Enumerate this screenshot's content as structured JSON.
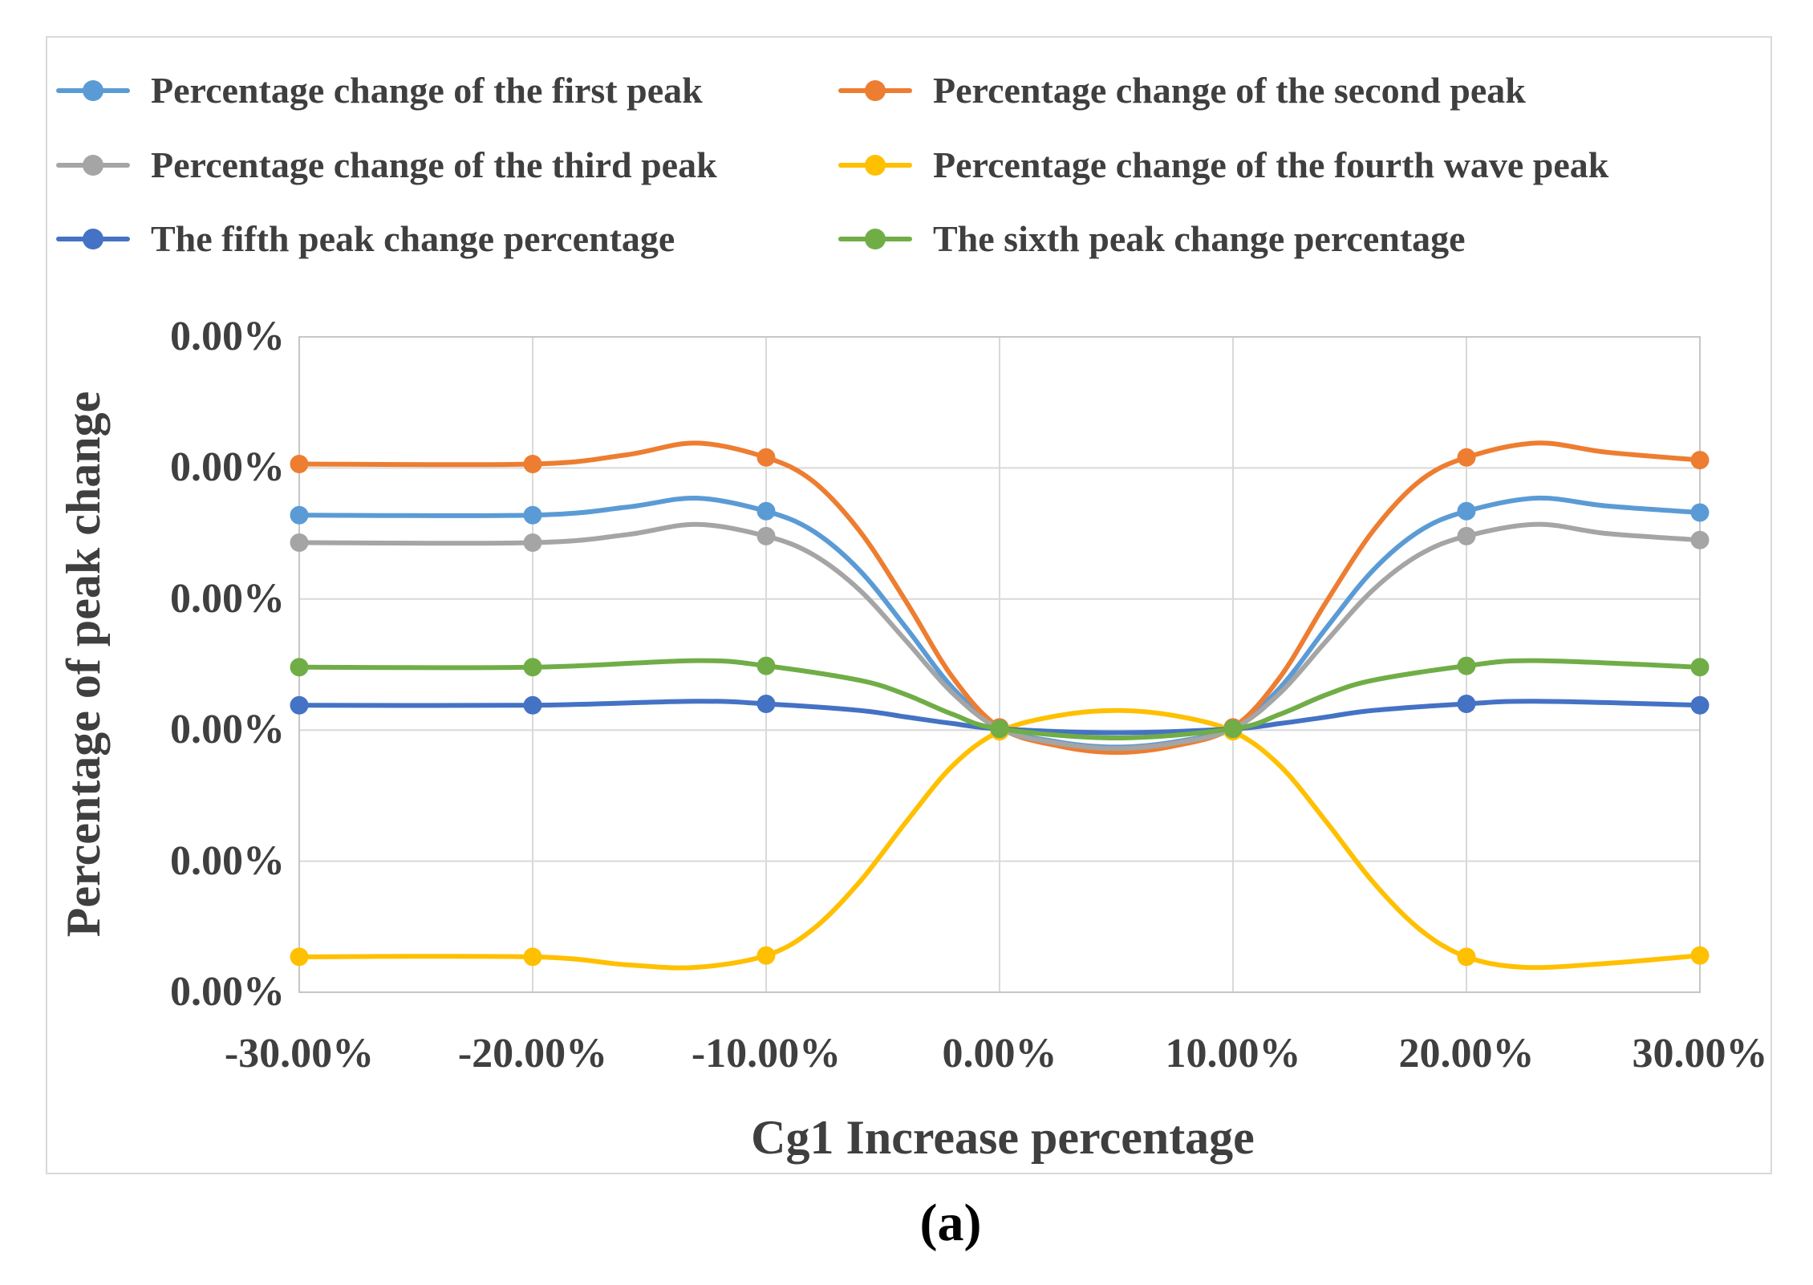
{
  "caption": "(a)",
  "palette": {
    "text_color": "#3F3F3F",
    "gridline_color": "#D9D9D9",
    "plot_border_color": "#C6C6C6",
    "chart_border_color": "#D9D9D9",
    "caption_color": "#000000",
    "background": "#FFFFFF"
  },
  "chart_data": {
    "type": "line",
    "title": "",
    "xlabel": "Cg1 Increase percentage",
    "ylabel": "Percentage of peak change",
    "legend_position": "top",
    "grid": true,
    "x_tick_labels": [
      "-30.00%",
      "-20.00%",
      "-10.00%",
      "0.00%",
      "10.00%",
      "20.00%",
      "30.00%"
    ],
    "x_tick_values": [
      -30,
      -20,
      -10,
      0,
      10,
      20,
      30
    ],
    "y_tick_labels": [
      "0.00%",
      "0.00%",
      "0.00%",
      "0.00%",
      "0.00%",
      "0.00%"
    ],
    "y_axis_note": "All six y-axis tick labels display 0.00% (values rounded to 2 decimals); series values below are relative heights in gridline units above the 4th gridline (the zero line where curves converge at 0.00% and 10.00%)",
    "xlim": [
      -30,
      30
    ],
    "ylim_grid_units": [
      -2,
      3
    ],
    "series": [
      {
        "name": "Percentage change of the first peak",
        "color": "#5B9BD5",
        "values_grid_units": [
          1.64,
          1.64,
          1.67,
          0.02,
          0.02,
          1.67,
          1.66
        ],
        "curve": [
          [
            -30,
            1.64
          ],
          [
            -20,
            1.64
          ],
          [
            -16,
            1.7
          ],
          [
            -13,
            1.77
          ],
          [
            -10,
            1.67
          ],
          [
            -8,
            1.52
          ],
          [
            -6,
            1.22
          ],
          [
            -4,
            0.78
          ],
          [
            -2,
            0.32
          ],
          [
            0,
            0.02
          ],
          [
            2.5,
            -0.09
          ],
          [
            5,
            -0.13
          ],
          [
            7.5,
            -0.09
          ],
          [
            10,
            0.02
          ],
          [
            12,
            0.32
          ],
          [
            14,
            0.78
          ],
          [
            16,
            1.22
          ],
          [
            18,
            1.52
          ],
          [
            20,
            1.67
          ],
          [
            23,
            1.77
          ],
          [
            26,
            1.71
          ],
          [
            30,
            1.66
          ]
        ]
      },
      {
        "name": "Percentage change of the second peak",
        "color": "#ED7D31",
        "values_grid_units": [
          2.03,
          2.03,
          2.08,
          0.02,
          0.02,
          2.08,
          2.06
        ],
        "curve": [
          [
            -30,
            2.03
          ],
          [
            -20,
            2.03
          ],
          [
            -16,
            2.1
          ],
          [
            -13,
            2.19
          ],
          [
            -10,
            2.08
          ],
          [
            -8,
            1.9
          ],
          [
            -6,
            1.52
          ],
          [
            -4,
            0.98
          ],
          [
            -2,
            0.4
          ],
          [
            0,
            0.02
          ],
          [
            2.5,
            -0.12
          ],
          [
            5,
            -0.17
          ],
          [
            7.5,
            -0.12
          ],
          [
            10,
            0.02
          ],
          [
            12,
            0.4
          ],
          [
            14,
            0.98
          ],
          [
            16,
            1.52
          ],
          [
            18,
            1.9
          ],
          [
            20,
            2.08
          ],
          [
            23,
            2.19
          ],
          [
            26,
            2.12
          ],
          [
            30,
            2.06
          ]
        ]
      },
      {
        "name": "Percentage change of the third peak",
        "color": "#A5A5A5",
        "values_grid_units": [
          1.43,
          1.43,
          1.48,
          0.01,
          0.01,
          1.48,
          1.45
        ],
        "curve": [
          [
            -30,
            1.43
          ],
          [
            -20,
            1.43
          ],
          [
            -16,
            1.49
          ],
          [
            -13,
            1.57
          ],
          [
            -10,
            1.48
          ],
          [
            -8,
            1.34
          ],
          [
            -6,
            1.07
          ],
          [
            -4,
            0.68
          ],
          [
            -2,
            0.28
          ],
          [
            0,
            0.01
          ],
          [
            2.5,
            -0.1
          ],
          [
            5,
            -0.14
          ],
          [
            7.5,
            -0.1
          ],
          [
            10,
            0.01
          ],
          [
            12,
            0.28
          ],
          [
            14,
            0.68
          ],
          [
            16,
            1.07
          ],
          [
            18,
            1.34
          ],
          [
            20,
            1.48
          ],
          [
            23,
            1.57
          ],
          [
            26,
            1.5
          ],
          [
            30,
            1.45
          ]
        ]
      },
      {
        "name": "Percentage change of the fourth wave peak",
        "color": "#FFC000",
        "values_grid_units": [
          -1.73,
          -1.73,
          -1.72,
          -0.01,
          -0.01,
          -1.73,
          -1.72
        ],
        "curve": [
          [
            -30,
            -1.73
          ],
          [
            -20,
            -1.73
          ],
          [
            -16,
            -1.79
          ],
          [
            -13,
            -1.81
          ],
          [
            -10,
            -1.72
          ],
          [
            -8,
            -1.52
          ],
          [
            -6,
            -1.16
          ],
          [
            -4,
            -0.7
          ],
          [
            -2,
            -0.27
          ],
          [
            0,
            -0.01
          ],
          [
            2.5,
            0.11
          ],
          [
            5,
            0.15
          ],
          [
            7.5,
            0.11
          ],
          [
            10,
            -0.01
          ],
          [
            12,
            -0.27
          ],
          [
            14,
            -0.7
          ],
          [
            16,
            -1.16
          ],
          [
            18,
            -1.52
          ],
          [
            20,
            -1.73
          ],
          [
            22.5,
            -1.81
          ],
          [
            26,
            -1.78
          ],
          [
            30,
            -1.72
          ]
        ]
      },
      {
        "name": "The fifth peak change percentage",
        "color": "#4472C4",
        "values_grid_units": [
          0.19,
          0.19,
          0.2,
          0.01,
          0.01,
          0.2,
          0.19
        ],
        "curve": [
          [
            -30,
            0.19
          ],
          [
            -20,
            0.19
          ],
          [
            -13,
            0.22
          ],
          [
            -10,
            0.2
          ],
          [
            -6,
            0.15
          ],
          [
            -4,
            0.1
          ],
          [
            -2,
            0.05
          ],
          [
            0,
            0.01
          ],
          [
            5,
            -0.02
          ],
          [
            10,
            0.01
          ],
          [
            12,
            0.05
          ],
          [
            14,
            0.1
          ],
          [
            16,
            0.15
          ],
          [
            20,
            0.2
          ],
          [
            23,
            0.22
          ],
          [
            30,
            0.19
          ]
        ]
      },
      {
        "name": "The sixth peak change percentage",
        "color": "#70AD47",
        "values_grid_units": [
          0.48,
          0.48,
          0.49,
          0.01,
          0.01,
          0.49,
          0.48
        ],
        "curve": [
          [
            -30,
            0.48
          ],
          [
            -20,
            0.48
          ],
          [
            -13,
            0.53
          ],
          [
            -10,
            0.49
          ],
          [
            -6,
            0.38
          ],
          [
            -4,
            0.27
          ],
          [
            -2,
            0.12
          ],
          [
            0,
            0.01
          ],
          [
            5,
            -0.06
          ],
          [
            10,
            0.01
          ],
          [
            12,
            0.12
          ],
          [
            14,
            0.27
          ],
          [
            16,
            0.38
          ],
          [
            20,
            0.49
          ],
          [
            23,
            0.53
          ],
          [
            30,
            0.48
          ]
        ]
      }
    ]
  }
}
